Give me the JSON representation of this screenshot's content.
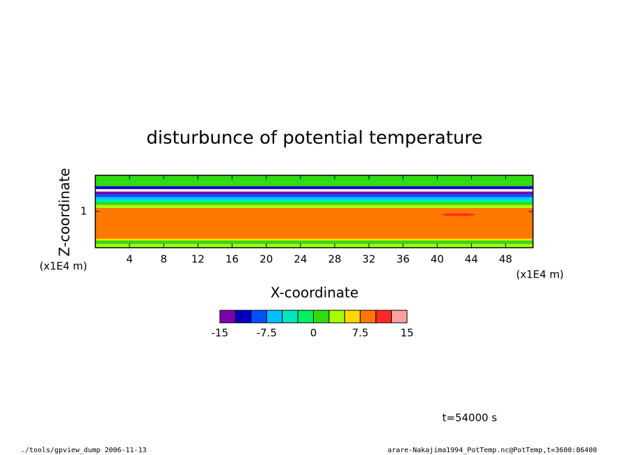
{
  "chart_data": {
    "type": "contour",
    "title": "disturbunce of potential temperature",
    "x_label": "X-coordinate",
    "x_unit": "(x1E4 m)",
    "y_label": "Z-coordinate",
    "y_unit": "(x1E4 m)",
    "xlim": [
      0,
      51.2
    ],
    "xticks": [
      4,
      8,
      12,
      16,
      20,
      24,
      28,
      32,
      36,
      40,
      44,
      48
    ],
    "ylim": [
      0,
      2
    ],
    "yticks": [
      1
    ],
    "zbins": [
      0,
      0.1,
      0.2,
      0.25,
      1.1,
      1.18,
      1.26,
      1.33,
      1.4,
      1.48,
      1.55,
      1.62,
      1.7,
      1.8,
      2.0
    ],
    "values": [
      3,
      1,
      6,
      8.5,
      4,
      1,
      -3,
      -6,
      -9,
      -14,
      null,
      -11,
      2,
      1
    ],
    "features": [
      {
        "x": [
          40.5,
          44.5
        ],
        "z": [
          0.88,
          0.95
        ],
        "value": 11
      }
    ],
    "levels": [
      -15,
      -12.5,
      -10,
      -7.5,
      -5,
      -2.5,
      0,
      2.5,
      5,
      7.5,
      10,
      12.5,
      15
    ],
    "colors": [
      "#7d00a8",
      "#0000c0",
      "#0050ff",
      "#00c0ff",
      "#00e8c0",
      "#00f060",
      "#30dc10",
      "#a8ff00",
      "#ffd800",
      "#ff7800",
      "#ff2828",
      "#ffa0a0"
    ],
    "colorbar_ticks": [
      -15,
      -7.5,
      0,
      7.5,
      15
    ],
    "annotation": "t=54000 s",
    "footer_left": "./tools/gpview_dump  2006-11-13",
    "footer_right": "arare-Nakajima1994_PotTemp.nc@PotTemp,t=3600:86400"
  }
}
